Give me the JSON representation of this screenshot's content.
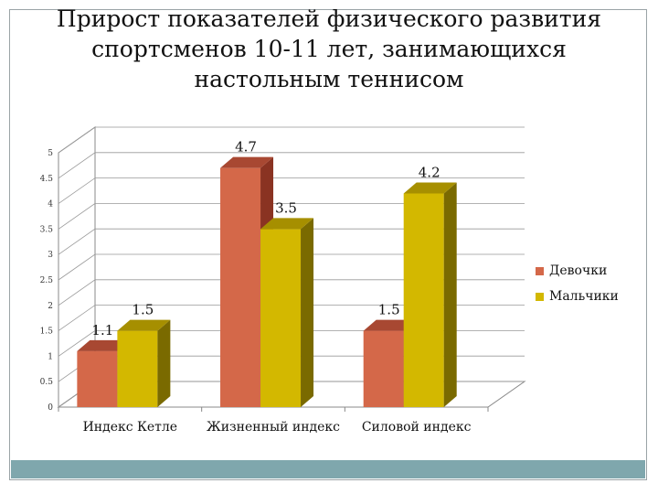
{
  "colors": {
    "girls": "#d46849",
    "girls_side": "#8a3322",
    "girls_top": "#a84832",
    "boys": "#d3b800",
    "boys_side": "#7a6a00",
    "boys_top": "#a68f00",
    "axis": "#888888",
    "grid": "#999999",
    "footer": "#7fa7ad"
  },
  "chart_data": {
    "type": "bar",
    "title": "Прирост показателей физического развития спортсменов 10-11 лет, занимающихся настольным теннисом",
    "categories": [
      "Индекс Кетле",
      "Жизненный индекс",
      "Силовой индекс"
    ],
    "series": [
      {
        "name": "Девочки",
        "values": [
          1.1,
          4.7,
          1.5
        ]
      },
      {
        "name": "Мальчики",
        "values": [
          1.5,
          3.5,
          4.2
        ]
      }
    ],
    "value_labels": [
      [
        "1.1",
        "4.7",
        "1.5"
      ],
      [
        "1.5",
        "3.5",
        "4.2"
      ]
    ],
    "ylim": [
      0,
      5
    ],
    "yticks": [
      "0",
      "0.5",
      "1",
      "1.5",
      "2",
      "2.5",
      "3",
      "3.5",
      "4",
      "4.5",
      "5"
    ],
    "grid": true,
    "legend": "right",
    "xlabel": "",
    "ylabel": ""
  }
}
